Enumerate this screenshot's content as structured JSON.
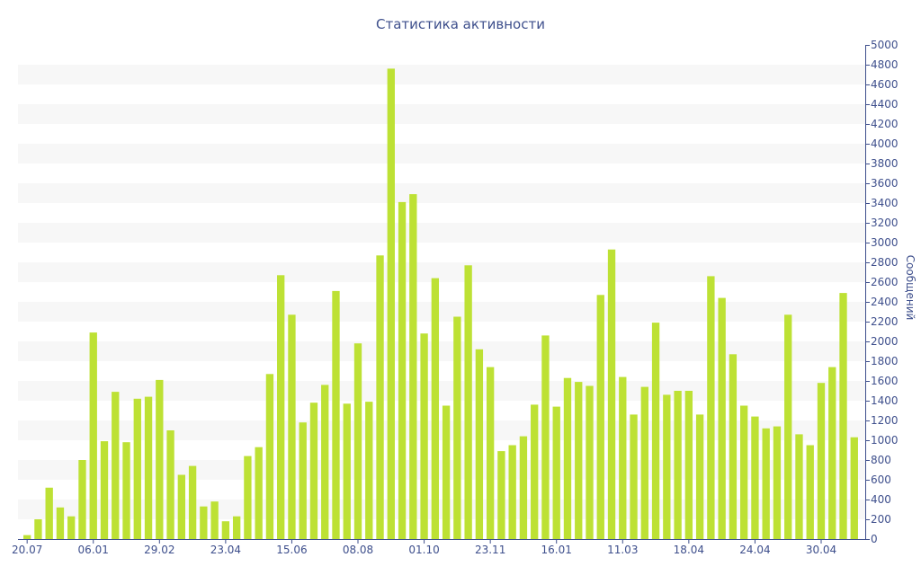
{
  "chart_data": {
    "type": "bar",
    "title": "Статистика активности",
    "ylabel": "Сообщений",
    "xlabel": "",
    "ylim": [
      0,
      5000
    ],
    "y_ticks": [
      0,
      200,
      400,
      600,
      800,
      1000,
      1200,
      1400,
      1600,
      1800,
      2000,
      2200,
      2400,
      2600,
      2800,
      3000,
      3200,
      3400,
      3600,
      3800,
      4000,
      4200,
      4400,
      4600,
      4800,
      5000
    ],
    "x_tick_labels": [
      "20.07",
      "06.01",
      "29.02",
      "23.04",
      "15.06",
      "08.08",
      "01.10",
      "23.11",
      "16.01",
      "11.03",
      "18.04",
      "24.04",
      "30.04"
    ],
    "y_axis_position": "right",
    "grid": "alternating horizontal bands",
    "bar_color": "#bde134",
    "text_color": "#3e4f8c",
    "values": [
      40,
      200,
      520,
      320,
      230,
      800,
      2090,
      990,
      1490,
      980,
      1420,
      1440,
      1610,
      1100,
      650,
      740,
      330,
      380,
      180,
      230,
      840,
      930,
      1670,
      2670,
      2270,
      1180,
      1380,
      1560,
      2510,
      1370,
      1980,
      1390,
      2870,
      4760,
      3410,
      3490,
      2080,
      2640,
      1350,
      2250,
      2770,
      1920,
      1740,
      890,
      950,
      1040,
      1360,
      2060,
      1340,
      1630,
      1590,
      1550,
      2470,
      2930,
      1640,
      1260,
      1540,
      2190,
      1460,
      1500,
      1500,
      1260,
      2660,
      2440,
      1870,
      1350,
      1240,
      1120,
      1140,
      2270,
      1060,
      950,
      1580,
      1740,
      2490,
      1030,
      0
    ]
  }
}
